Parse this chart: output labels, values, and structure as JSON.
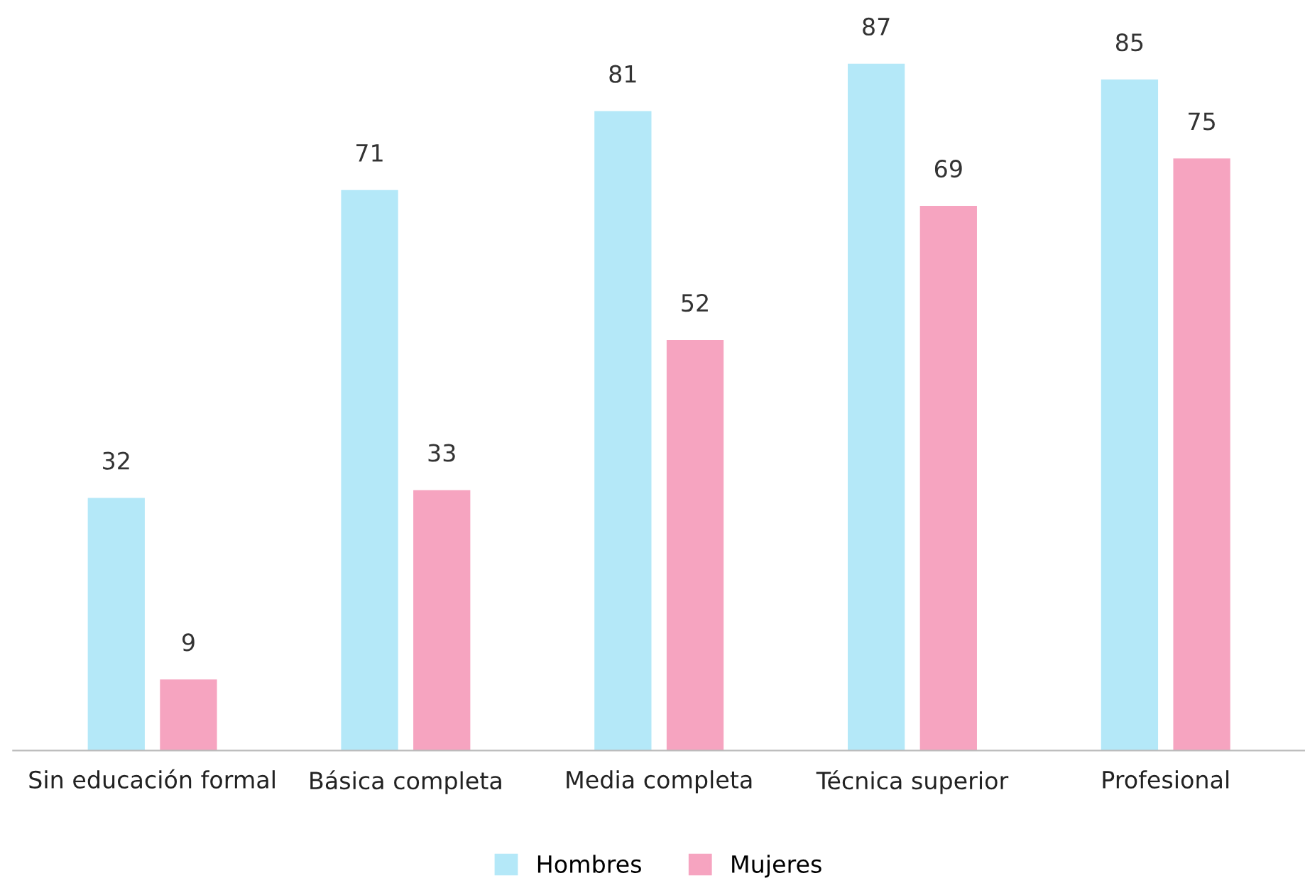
{
  "chart_data": {
    "type": "bar",
    "categories": [
      "Sin educación formal",
      "Básica completa",
      "Media completa",
      "Técnica superior",
      "Profesional"
    ],
    "series": [
      {
        "name": "Hombres",
        "color": "#b4e8f8",
        "values": [
          32,
          71,
          81,
          87,
          85
        ]
      },
      {
        "name": "Mujeres",
        "color": "#f6a4c0",
        "values": [
          9,
          33,
          52,
          69,
          75
        ]
      }
    ],
    "data_labels": true,
    "legend": "bottom",
    "grid": false
  }
}
